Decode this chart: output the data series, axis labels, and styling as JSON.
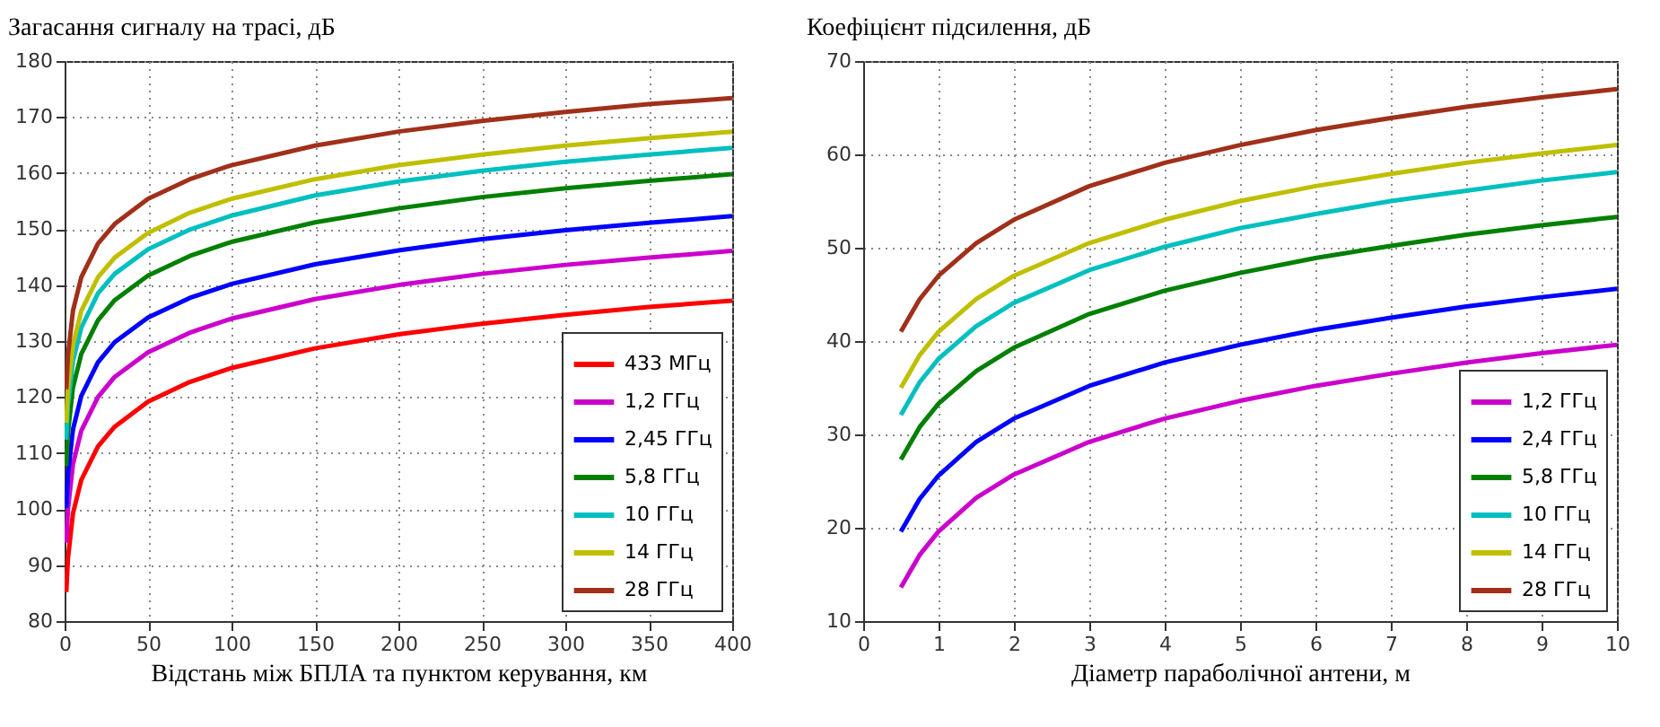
{
  "chart_data": [
    {
      "type": "line",
      "ylabel": "Загасання сигналу на трасі, дБ",
      "xlabel": "Відстань між БПЛА та пунктом керування, км",
      "x": [
        1,
        2,
        5,
        10,
        20,
        30,
        50,
        75,
        100,
        150,
        200,
        250,
        300,
        350,
        400
      ],
      "xlim": [
        0,
        400
      ],
      "ylim": [
        80,
        180
      ],
      "xticks": [
        0,
        50,
        100,
        150,
        200,
        250,
        300,
        350,
        400
      ],
      "yticks": [
        80,
        90,
        100,
        110,
        120,
        130,
        140,
        150,
        160,
        170,
        180
      ],
      "grid": true,
      "legend": "bottom right",
      "series": [
        {
          "name": "433 МГц",
          "color": "#ff0000",
          "values": [
            85.2,
            91.2,
            99.2,
            105.2,
            111.2,
            114.7,
            119.2,
            122.7,
            125.2,
            128.7,
            131.2,
            133.1,
            134.7,
            136.1,
            137.2
          ]
        },
        {
          "name": "1,2 ГГц",
          "color": "#cc00cc",
          "values": [
            94.0,
            100.0,
            108.0,
            114.0,
            120.0,
            123.6,
            128.0,
            131.5,
            134.0,
            137.5,
            140.0,
            142.0,
            143.6,
            144.9,
            146.1
          ]
        },
        {
          "name": "2,45 ГГц",
          "color": "#0000ff",
          "values": [
            100.2,
            106.2,
            114.2,
            120.2,
            126.2,
            129.8,
            134.2,
            137.7,
            140.2,
            143.7,
            146.2,
            148.2,
            149.8,
            151.1,
            152.3
          ]
        },
        {
          "name": "5,8 ГГц",
          "color": "#008000",
          "values": [
            107.7,
            113.7,
            121.7,
            127.7,
            133.7,
            137.3,
            141.7,
            145.2,
            147.7,
            151.2,
            153.7,
            155.7,
            157.3,
            158.6,
            159.8
          ]
        },
        {
          "name": "10 ГГц",
          "color": "#00bfbf",
          "values": [
            112.4,
            118.5,
            126.4,
            132.4,
            138.5,
            142.0,
            146.4,
            149.9,
            152.4,
            156.0,
            158.5,
            160.4,
            162.0,
            163.3,
            164.5
          ]
        },
        {
          "name": "14 ГГц",
          "color": "#bfbf00",
          "values": [
            115.4,
            121.4,
            129.3,
            135.4,
            141.4,
            144.9,
            149.3,
            152.9,
            155.4,
            158.9,
            161.4,
            163.3,
            164.9,
            166.2,
            167.4
          ]
        },
        {
          "name": "28 ГГц",
          "color": "#a0301a",
          "values": [
            121.4,
            127.4,
            135.4,
            141.4,
            147.4,
            150.9,
            155.4,
            158.9,
            161.4,
            164.9,
            167.4,
            169.3,
            170.9,
            172.3,
            173.4
          ]
        }
      ]
    },
    {
      "type": "line",
      "ylabel": "Коефіцієнт підсилення, дБ",
      "xlabel": "Діаметр параболічної антени, м",
      "x": [
        0.5,
        0.75,
        1,
        1.5,
        2,
        3,
        4,
        5,
        6,
        7,
        8,
        9,
        10
      ],
      "xlim": [
        0,
        10
      ],
      "ylim": [
        10,
        70
      ],
      "xticks": [
        0,
        1,
        2,
        3,
        4,
        5,
        6,
        7,
        8,
        9,
        10
      ],
      "yticks": [
        10,
        20,
        30,
        40,
        50,
        60,
        70
      ],
      "grid": true,
      "legend": "bottom right",
      "series": [
        {
          "name": "1,2 ГГц",
          "color": "#cc00cc",
          "values": [
            13.6,
            17.1,
            19.6,
            23.2,
            25.7,
            29.2,
            31.7,
            33.6,
            35.2,
            36.5,
            37.7,
            38.7,
            39.6
          ]
        },
        {
          "name": "2,4 ГГц",
          "color": "#0000ff",
          "values": [
            19.6,
            23.1,
            25.6,
            29.2,
            31.7,
            35.2,
            37.7,
            39.6,
            41.2,
            42.5,
            43.7,
            44.7,
            45.6
          ]
        },
        {
          "name": "5,8 ГГц",
          "color": "#008000",
          "values": [
            27.3,
            30.8,
            33.3,
            36.8,
            39.3,
            42.9,
            45.4,
            47.3,
            48.9,
            50.2,
            51.4,
            52.4,
            53.3
          ]
        },
        {
          "name": "10 ГГц",
          "color": "#00bfbf",
          "values": [
            32.1,
            35.6,
            38.1,
            41.6,
            44.1,
            47.6,
            50.1,
            52.1,
            53.6,
            55.0,
            56.1,
            57.2,
            58.1
          ]
        },
        {
          "name": "14 ГГц",
          "color": "#bfbf00",
          "values": [
            35.0,
            38.5,
            41.0,
            44.5,
            47.0,
            50.5,
            53.0,
            55.0,
            56.6,
            57.9,
            59.1,
            60.1,
            61.0
          ]
        },
        {
          "name": "28 ГГц",
          "color": "#a0301a",
          "values": [
            41.0,
            44.5,
            47.0,
            50.5,
            53.0,
            56.6,
            59.1,
            61.0,
            62.6,
            63.9,
            65.1,
            66.1,
            67.0
          ]
        }
      ]
    }
  ]
}
